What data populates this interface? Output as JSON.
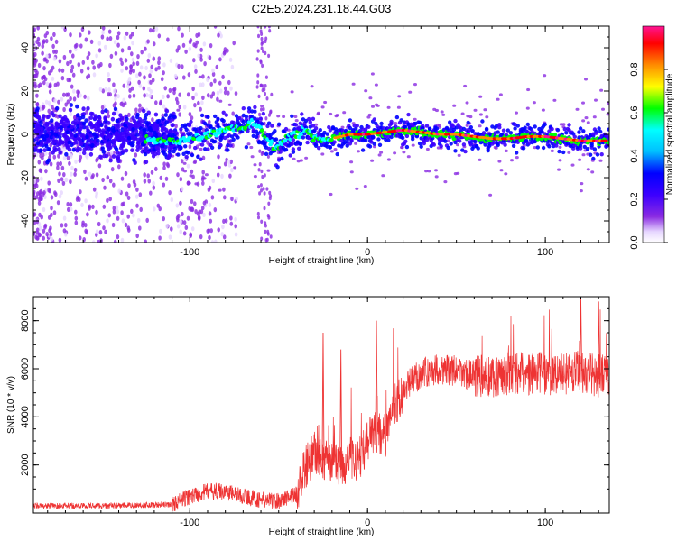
{
  "title": "C2E5.2024.231.18.44.G03",
  "chart_data": [
    {
      "type": "heatmap",
      "title": "C2E5.2024.231.18.44.G03",
      "xlabel": "Height of straight line (km)",
      "ylabel": "Frequency (Hz)",
      "xlim": [
        -188,
        136
      ],
      "ylim": [
        -50,
        50
      ],
      "x_ticks": [
        -100,
        0,
        100
      ],
      "y_ticks": [
        -40,
        -20,
        0,
        20,
        40
      ],
      "colorbar": {
        "label": "Normalized spectral amplitude",
        "range": [
          0,
          1
        ],
        "ticks": [
          0.0,
          0.2,
          0.4,
          0.6,
          0.8
        ],
        "colormap": [
          "#ffffff",
          "#e6d6ff",
          "#8a2be2",
          "#3c00ff",
          "#0000ff",
          "#00bfff",
          "#00ffff",
          "#00ff00",
          "#ffff00",
          "#ff8c00",
          "#ff0000",
          "#ff1493"
        ]
      },
      "ridge": {
        "x": [
          -120,
          -110,
          -100,
          -90,
          -80,
          -70,
          -65,
          -60,
          -55,
          -50,
          -45,
          -40,
          -35,
          -30,
          -25,
          -20,
          -10,
          0,
          10,
          20,
          30,
          40,
          50,
          60,
          70,
          80,
          90,
          100,
          110,
          120,
          130
        ],
        "y": [
          -3,
          -3,
          -2,
          0,
          2,
          3,
          5,
          3,
          -4,
          -6,
          -2,
          0,
          2,
          -1,
          -3,
          -2,
          0,
          0,
          1,
          2,
          1,
          0,
          0,
          -1,
          -2,
          -2,
          -1,
          -1,
          -2,
          -3,
          -3
        ]
      }
    },
    {
      "type": "line",
      "xlabel": "Height of straight line (km)",
      "ylabel": "SNR (10 * v/v)",
      "xlim": [
        -188,
        136
      ],
      "ylim": [
        0,
        9000
      ],
      "x_ticks": [
        -100,
        0,
        100
      ],
      "y_ticks": [
        2000,
        4000,
        6000,
        8000
      ],
      "color": "#ee3333",
      "envelope": {
        "x": [
          -188,
          -150,
          -110,
          -100,
          -90,
          -80,
          -70,
          -60,
          -50,
          -40,
          -35,
          -30,
          -25,
          -20,
          -15,
          -10,
          -5,
          0,
          5,
          10,
          15,
          20,
          25,
          30,
          40,
          50,
          60,
          70,
          80,
          90,
          100,
          110,
          120,
          130,
          136
        ],
        "y": [
          300,
          300,
          350,
          700,
          900,
          900,
          700,
          550,
          500,
          800,
          1900,
          2500,
          2200,
          2100,
          1900,
          2300,
          2200,
          3000,
          3400,
          3100,
          4500,
          5000,
          5500,
          5800,
          6000,
          5900,
          5700,
          5700,
          5800,
          5800,
          5800,
          5800,
          5900,
          5700,
          5800
        ]
      },
      "spikes": [
        {
          "x": -25,
          "y": 7500
        },
        {
          "x": -15,
          "y": 6800
        },
        {
          "x": 5,
          "y": 8000
        },
        {
          "x": 120,
          "y": 8900
        },
        {
          "x": 130,
          "y": 8800
        }
      ]
    }
  ]
}
